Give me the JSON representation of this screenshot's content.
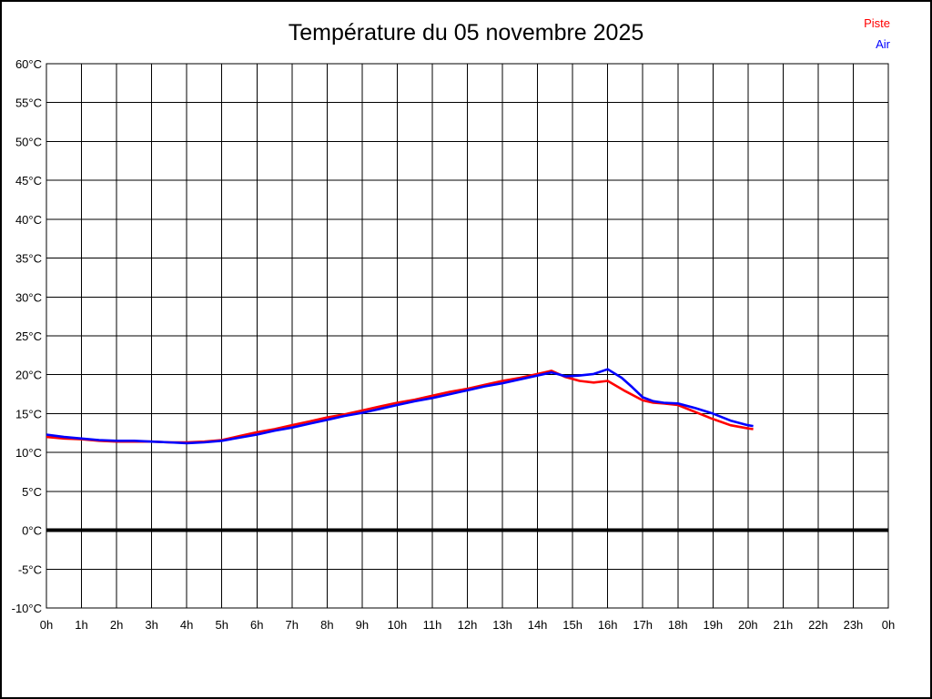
{
  "header": {
    "title": "Température du 05 novembre 2025"
  },
  "legend": {
    "items": [
      {
        "label": "Piste",
        "color": "#ff0000"
      },
      {
        "label": "Air",
        "color": "#0000ff"
      }
    ]
  },
  "chart_data": {
    "type": "line",
    "title": "Température du 05 novembre 2025",
    "xlabel": "",
    "ylabel": "",
    "x_unit": "hour of day",
    "y_unit": "°C",
    "xlim": [
      0,
      24
    ],
    "ylim": [
      -10,
      60
    ],
    "grid": true,
    "legend_position": "top-right",
    "x_ticks": {
      "values": [
        0,
        1,
        2,
        3,
        4,
        5,
        6,
        7,
        8,
        9,
        10,
        11,
        12,
        13,
        14,
        15,
        16,
        17,
        18,
        19,
        20,
        21,
        22,
        23,
        24
      ],
      "labels": [
        "0h",
        "1h",
        "2h",
        "3h",
        "4h",
        "5h",
        "6h",
        "7h",
        "8h",
        "9h",
        "10h",
        "11h",
        "12h",
        "13h",
        "14h",
        "15h",
        "16h",
        "17h",
        "18h",
        "19h",
        "20h",
        "21h",
        "22h",
        "23h",
        "0h"
      ]
    },
    "y_ticks": {
      "values": [
        60,
        55,
        50,
        45,
        40,
        35,
        30,
        25,
        20,
        15,
        10,
        5,
        0,
        -5,
        -10
      ],
      "labels": [
        "60°C",
        "55°C",
        "50°C",
        "45°C",
        "40°C",
        "35°C",
        "30°C",
        "25°C",
        "20°C",
        "15°C",
        "10°C",
        "5°C",
        "0°C",
        "-5°C",
        "-10°C"
      ]
    },
    "zero_line": {
      "value": 0,
      "color": "#000000",
      "stroke_width": 4
    },
    "series": [
      {
        "name": "Piste",
        "color": "#ff0000",
        "points": [
          [
            0,
            12.0
          ],
          [
            0.5,
            11.8
          ],
          [
            1,
            11.7
          ],
          [
            1.5,
            11.5
          ],
          [
            2,
            11.4
          ],
          [
            2.5,
            11.4
          ],
          [
            3,
            11.4
          ],
          [
            3.5,
            11.3
          ],
          [
            4,
            11.3
          ],
          [
            4.5,
            11.4
          ],
          [
            5,
            11.6
          ],
          [
            5.5,
            12.1
          ],
          [
            6,
            12.6
          ],
          [
            6.5,
            13.0
          ],
          [
            7,
            13.5
          ],
          [
            7.5,
            14.0
          ],
          [
            8,
            14.5
          ],
          [
            8.5,
            14.9
          ],
          [
            9,
            15.4
          ],
          [
            9.5,
            15.9
          ],
          [
            10,
            16.4
          ],
          [
            10.5,
            16.8
          ],
          [
            11,
            17.3
          ],
          [
            11.5,
            17.8
          ],
          [
            12,
            18.2
          ],
          [
            12.5,
            18.7
          ],
          [
            13,
            19.2
          ],
          [
            13.5,
            19.6
          ],
          [
            14,
            20.1
          ],
          [
            14.4,
            20.5
          ],
          [
            14.8,
            19.7
          ],
          [
            15.2,
            19.2
          ],
          [
            15.6,
            19.0
          ],
          [
            16,
            19.2
          ],
          [
            16.5,
            17.9
          ],
          [
            17,
            16.7
          ],
          [
            17.3,
            16.4
          ],
          [
            17.6,
            16.3
          ],
          [
            18,
            16.1
          ],
          [
            18.5,
            15.2
          ],
          [
            19,
            14.3
          ],
          [
            19.5,
            13.5
          ],
          [
            20,
            13.1
          ],
          [
            20.15,
            13.0
          ]
        ]
      },
      {
        "name": "Air",
        "color": "#0000ff",
        "points": [
          [
            0,
            12.3
          ],
          [
            0.5,
            12.0
          ],
          [
            1,
            11.8
          ],
          [
            1.5,
            11.6
          ],
          [
            2,
            11.5
          ],
          [
            2.5,
            11.5
          ],
          [
            3,
            11.4
          ],
          [
            3.5,
            11.3
          ],
          [
            4,
            11.2
          ],
          [
            4.5,
            11.3
          ],
          [
            5,
            11.5
          ],
          [
            5.5,
            11.9
          ],
          [
            6,
            12.3
          ],
          [
            6.5,
            12.8
          ],
          [
            7,
            13.2
          ],
          [
            7.5,
            13.7
          ],
          [
            8,
            14.2
          ],
          [
            8.5,
            14.7
          ],
          [
            9,
            15.1
          ],
          [
            9.5,
            15.6
          ],
          [
            10,
            16.1
          ],
          [
            10.5,
            16.6
          ],
          [
            11,
            17.0
          ],
          [
            11.5,
            17.5
          ],
          [
            12,
            18.0
          ],
          [
            12.5,
            18.5
          ],
          [
            13,
            18.9
          ],
          [
            13.5,
            19.4
          ],
          [
            14,
            19.9
          ],
          [
            14.4,
            20.3
          ],
          [
            14.8,
            19.8
          ],
          [
            15.2,
            19.9
          ],
          [
            15.6,
            20.1
          ],
          [
            16,
            20.7
          ],
          [
            16.4,
            19.6
          ],
          [
            16.7,
            18.4
          ],
          [
            17,
            17.1
          ],
          [
            17.3,
            16.6
          ],
          [
            17.6,
            16.4
          ],
          [
            18,
            16.3
          ],
          [
            18.5,
            15.7
          ],
          [
            19,
            15.0
          ],
          [
            19.5,
            14.1
          ],
          [
            20,
            13.5
          ],
          [
            20.15,
            13.4
          ]
        ]
      }
    ]
  }
}
